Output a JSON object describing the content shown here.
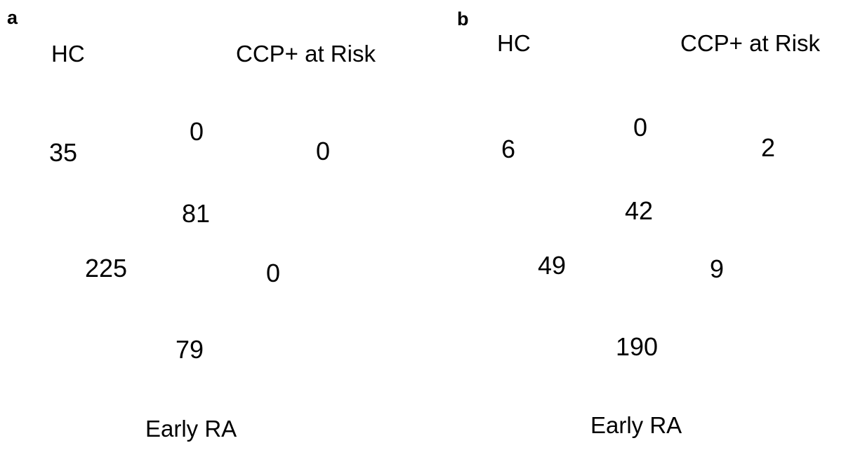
{
  "panels": [
    {
      "letter": "a",
      "sets": {
        "top_left": "HC",
        "top_right": "CCP+ at Risk",
        "bottom": "Early RA"
      },
      "counts": {
        "hc_only": "35",
        "hc_ccp_outer": "0",
        "ccp_only": "0",
        "center": "81",
        "hc_ra": "225",
        "ccp_ra": "0",
        "ra_only": "79"
      }
    },
    {
      "letter": "b",
      "sets": {
        "top_left": "HC",
        "top_right": "CCP+ at Risk",
        "bottom": "Early RA"
      },
      "counts": {
        "hc_only": "6",
        "hc_ccp_outer": "0",
        "ccp_only": "2",
        "center": "42",
        "hc_ra": "49",
        "ccp_ra": "9",
        "ra_only": "190"
      }
    }
  ]
}
